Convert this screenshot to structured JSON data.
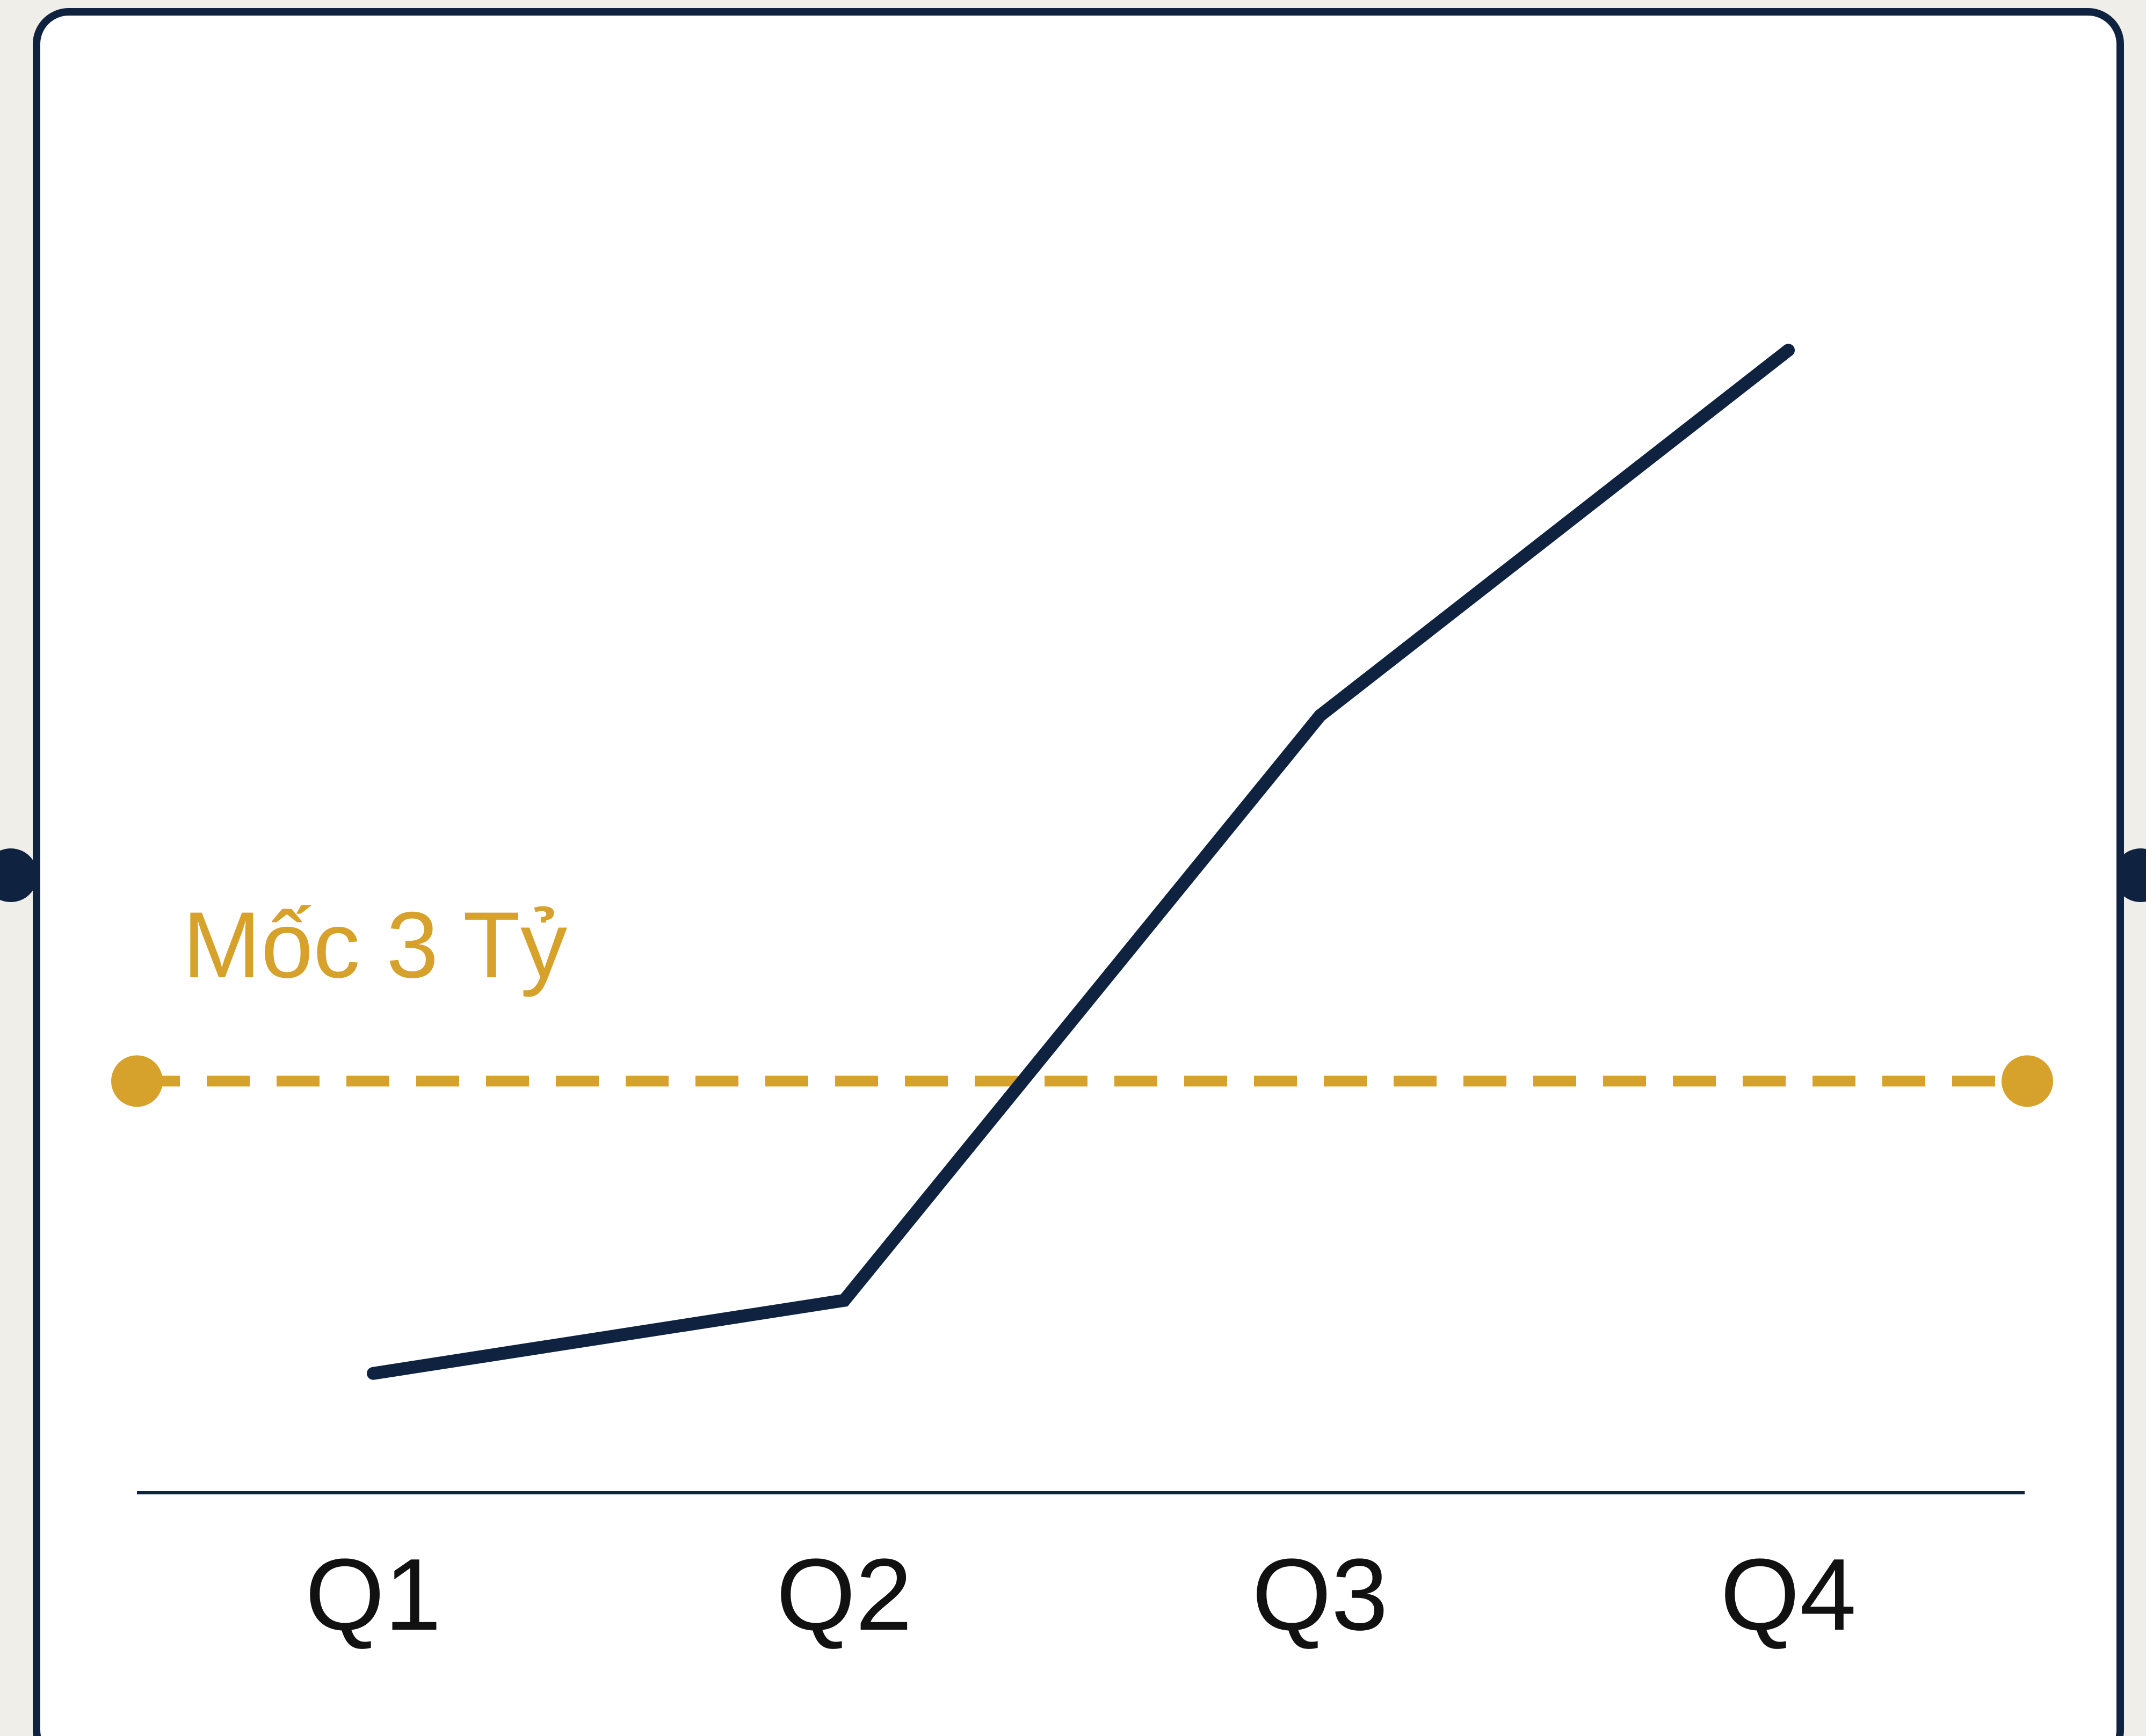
{
  "colors": {
    "page_background": "#efeee8",
    "card_background": "#ffffff",
    "card_border": "#0f2340",
    "series_line": "#0f2340",
    "reference_line": "#d6a22c",
    "axis_line": "#0f2340",
    "tick_text": "#111111"
  },
  "chart_data": {
    "type": "line",
    "title": "",
    "xlabel": "",
    "ylabel": "",
    "categories": [
      "Q1",
      "Q2",
      "Q3",
      "Q4"
    ],
    "series": [
      {
        "values": [
          1.0,
          1.5,
          5.5,
          8.0
        ]
      }
    ],
    "ylim": [
      0,
      9
    ],
    "grid": false,
    "legend": "none",
    "reference_line": {
      "label": "Mốc 3 Tỷ",
      "value": 3,
      "style": "dashed",
      "end_markers": true
    }
  }
}
